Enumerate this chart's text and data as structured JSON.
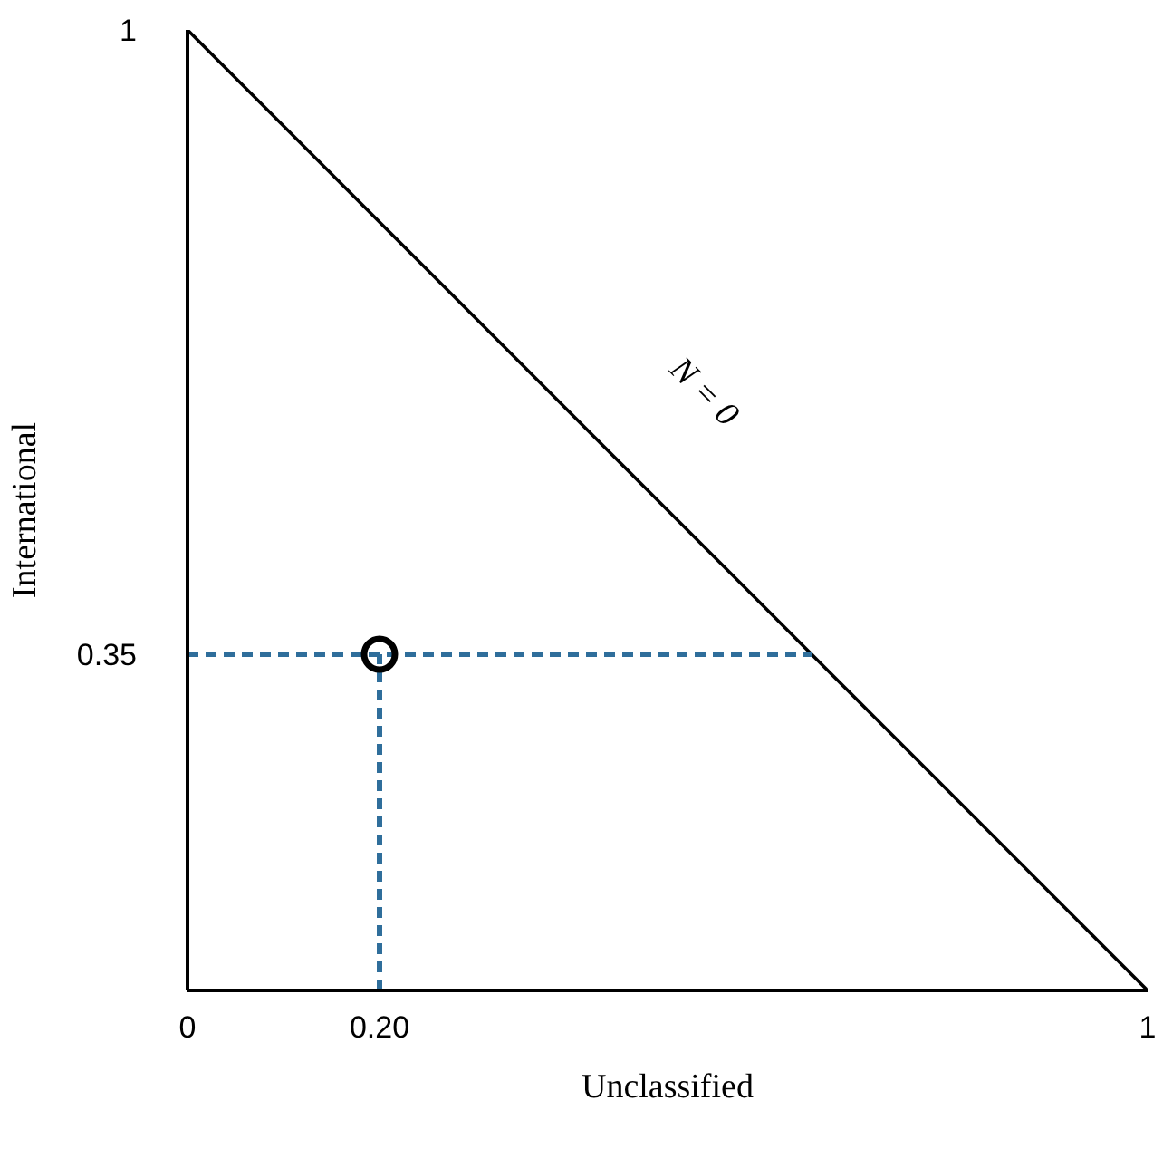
{
  "chart_data": {
    "type": "line",
    "xlabel": "Unclassified",
    "ylabel": "International",
    "xlim": [
      0,
      1
    ],
    "ylim": [
      0,
      1
    ],
    "xticks": [
      0,
      {
        "value": 0.2,
        "label": "0.20"
      },
      1
    ],
    "yticks": [
      0.35,
      1
    ],
    "grid": false,
    "series": [
      {
        "color": "#000000",
        "x": [
          0,
          1
        ],
        "values": [
          1,
          0
        ],
        "line_style": "solid",
        "marker": "none"
      },
      {
        "color": "#2f6e9b",
        "x": [
          0,
          0.65
        ],
        "values": [
          0.35,
          0.35
        ],
        "line_style": "dashed",
        "marker": "none"
      },
      {
        "color": "#2f6e9b",
        "x": [
          0.2,
          0.2
        ],
        "values": [
          0,
          0.35
        ],
        "line_style": "dashed",
        "marker": "none"
      },
      {
        "type": "scatter",
        "color": "#000000",
        "x": [
          0.2
        ],
        "values": [
          0.35
        ],
        "marker": "circle"
      }
    ],
    "annotations": [
      "N = 0"
    ]
  }
}
